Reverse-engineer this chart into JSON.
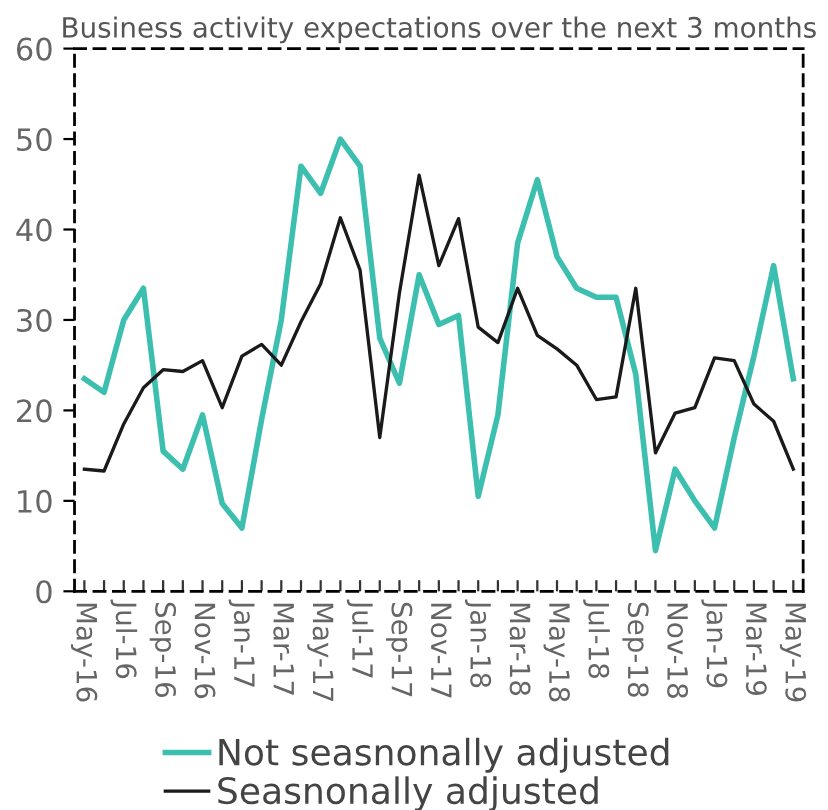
{
  "chart_data": {
    "type": "line",
    "title": "Business activity expectations over the next 3 months",
    "categories": [
      "May-16",
      null,
      "Jul-16",
      null,
      "Sep-16",
      null,
      "Nov-16",
      null,
      "Jan-17",
      null,
      "Mar-17",
      null,
      "May-17",
      null,
      "Jul-17",
      null,
      "Sep-17",
      null,
      "Nov-17",
      null,
      "Jan-18",
      null,
      "Mar-18",
      null,
      "May-18",
      null,
      "Jul-18",
      null,
      "Sep-18",
      null,
      "Nov-18",
      null,
      "Jan-19",
      null,
      "Mar-19",
      null,
      "May-19"
    ],
    "series": [
      {
        "name": "Not seasnonally adjusted",
        "color": "#3dbfb0",
        "values": [
          23.5,
          22,
          30,
          33.5,
          15.5,
          13.5,
          19.5,
          9.7,
          7,
          19,
          30,
          47,
          44,
          50,
          47,
          28,
          23,
          35,
          29.5,
          30.5,
          10.5,
          19.5,
          38.5,
          45.5,
          37,
          33.5,
          32.5,
          32.5,
          24,
          4.5,
          13.5,
          10,
          7,
          17,
          26,
          36,
          23.5
        ]
      },
      {
        "name": "Seasnonally adjusted",
        "color": "#1a1a1a",
        "values": [
          13.5,
          13.3,
          18.5,
          22.5,
          24.5,
          24.3,
          25.5,
          20.3,
          26,
          27.3,
          25,
          29.8,
          34,
          41.3,
          35.5,
          17,
          33,
          46,
          36,
          41.2,
          29.2,
          27.5,
          33.5,
          28.3,
          26.8,
          25,
          21.2,
          21.5,
          33.5,
          15.3,
          19.7,
          20.3,
          25.8,
          25.5,
          20.7,
          18.8,
          13.5
        ]
      }
    ],
    "ylim": [
      0,
      60
    ],
    "yticks": [
      0,
      10,
      20,
      30,
      40,
      50,
      60
    ],
    "grid": false,
    "legend": "bottom",
    "marker": "none",
    "line_style": "solid"
  }
}
